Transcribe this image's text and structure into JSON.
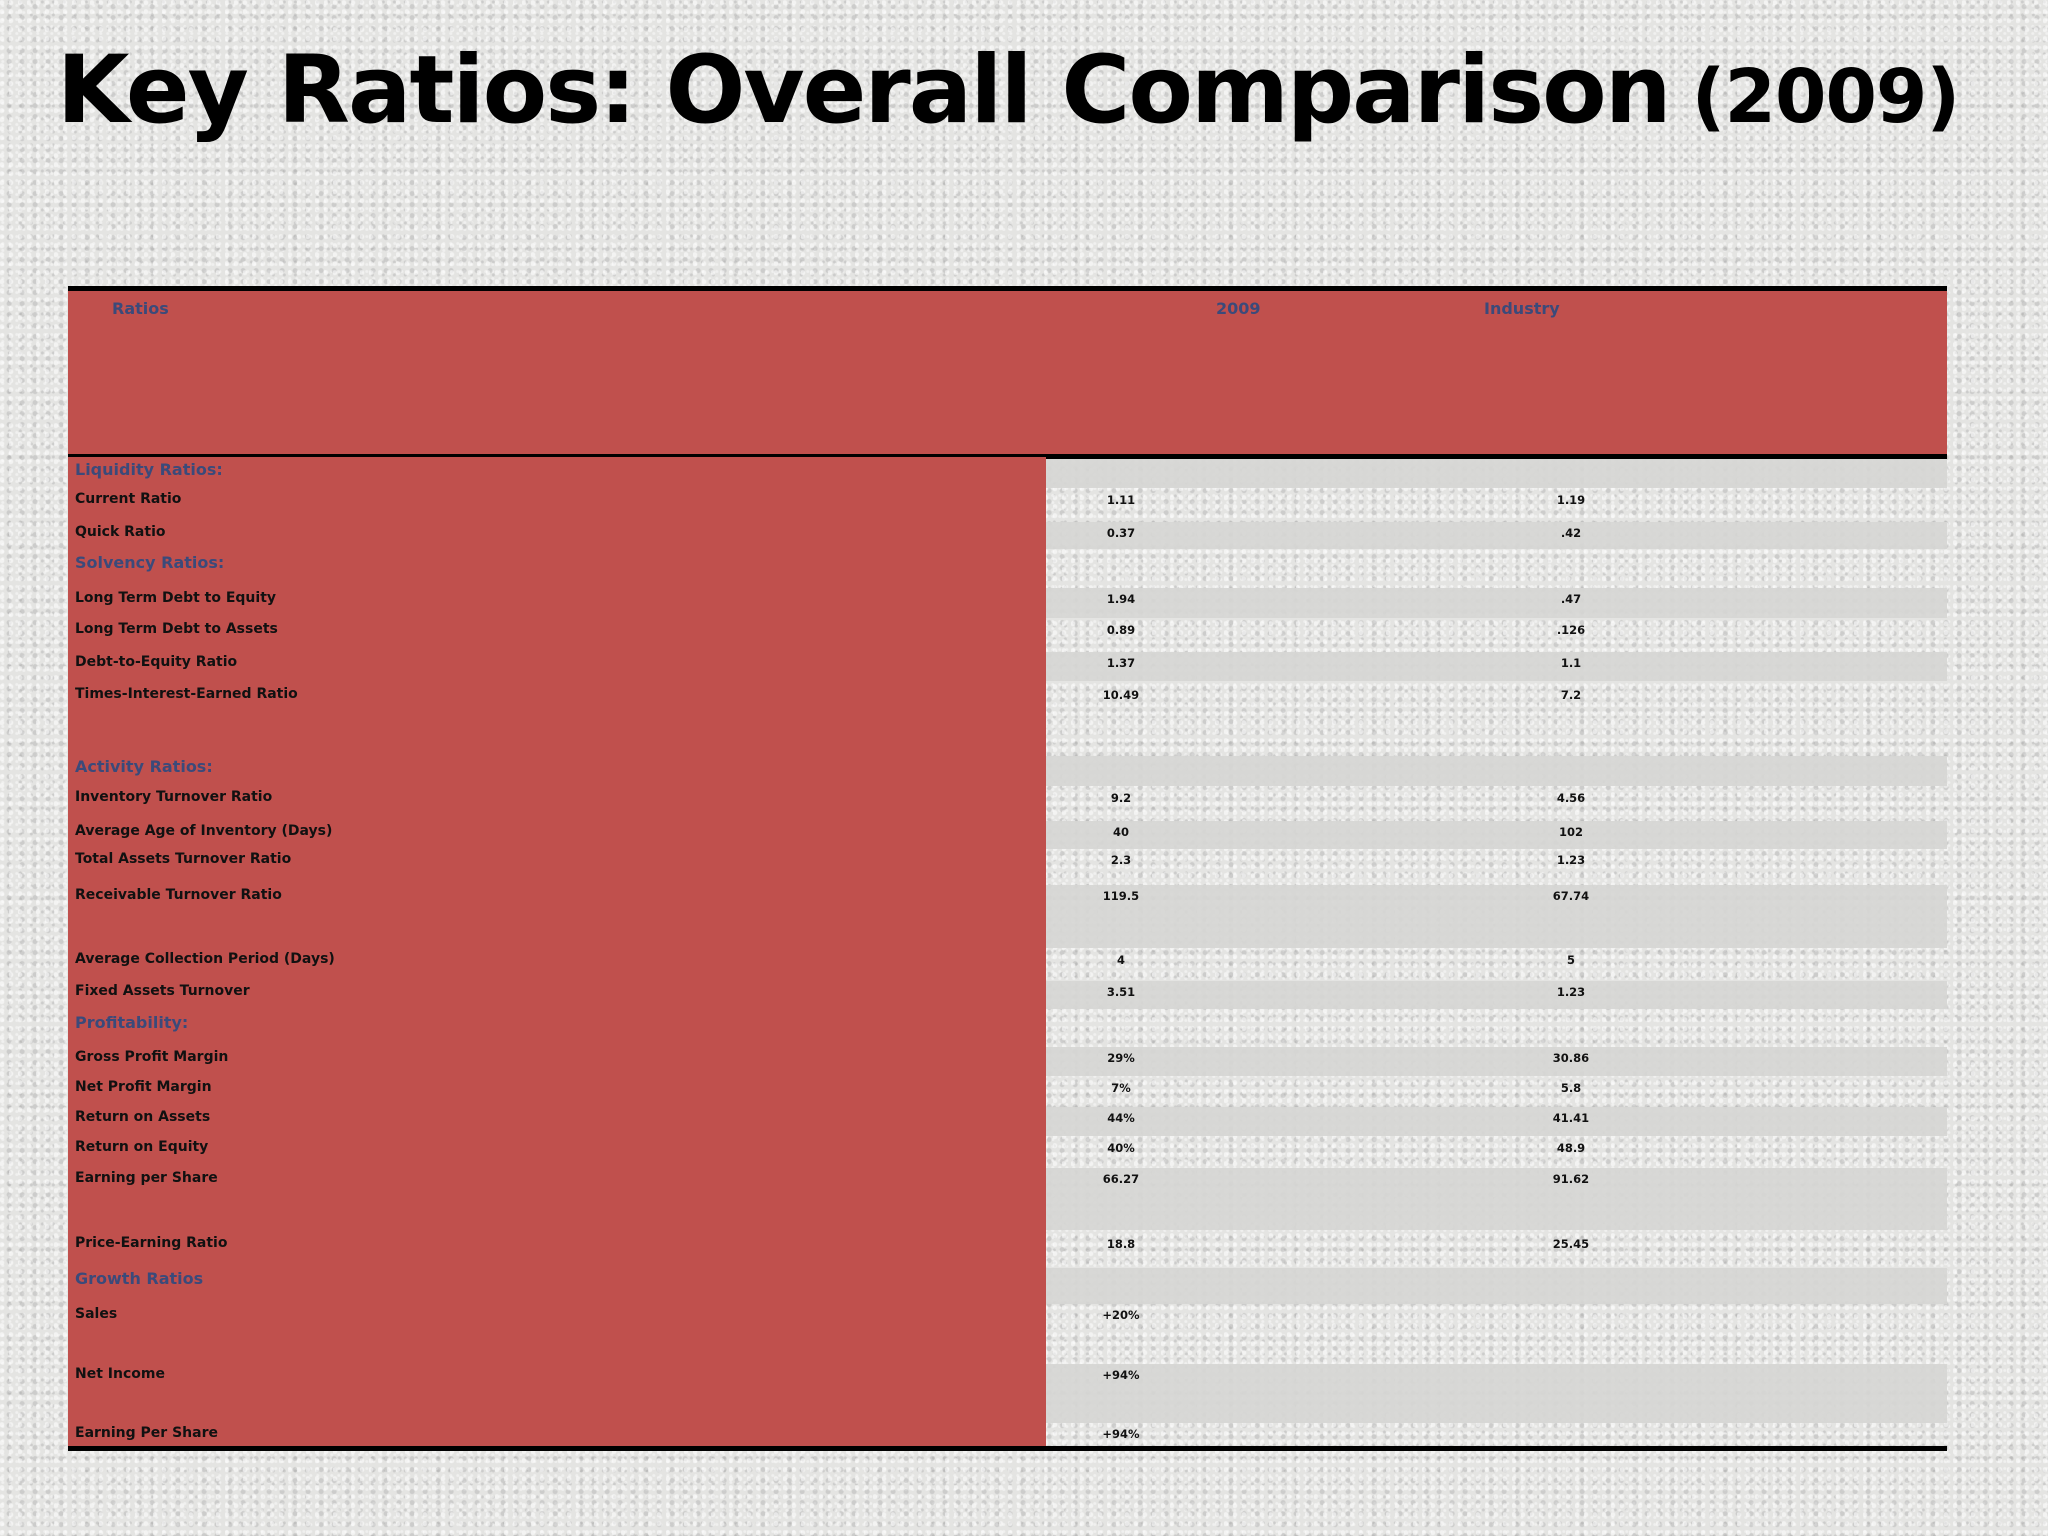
{
  "title": {
    "main": "Key Ratios: Overall Comparison",
    "year": "(2009)"
  },
  "header": {
    "col_ratio": "Ratios",
    "col_year": "2009",
    "col_industry": "Industry"
  },
  "rows": [
    {
      "type": "section",
      "label": "Liquidity Ratios:",
      "v1": "",
      "v2": ""
    },
    {
      "type": "item",
      "label": "Current Ratio",
      "v1": "1.11",
      "v2": "1.19"
    },
    {
      "type": "item",
      "label": "Quick Ratio",
      "v1": "0.37",
      "v2": ".42"
    },
    {
      "type": "section",
      "label": "Solvency Ratios:",
      "v1": "",
      "v2": ""
    },
    {
      "type": "item",
      "label": "Long Term Debt to Equity",
      "v1": "1.94",
      "v2": ".47"
    },
    {
      "type": "item",
      "label": "Long Term Debt to Assets",
      "v1": "0.89",
      "v2": ".126"
    },
    {
      "type": "item",
      "label": "Debt-to-Equity Ratio",
      "v1": "1.37",
      "v2": "1.1"
    },
    {
      "type": "item",
      "label": "Times-Interest-Earned Ratio",
      "v1": "10.49",
      "v2": "7.2"
    },
    {
      "type": "section",
      "label": "Activity Ratios:",
      "v1": "",
      "v2": ""
    },
    {
      "type": "item",
      "label": "Inventory Turnover Ratio",
      "v1": "9.2",
      "v2": "4.56"
    },
    {
      "type": "item",
      "label": "Average Age of Inventory (Days)",
      "v1": "40",
      "v2": "102"
    },
    {
      "type": "item",
      "label": "Total Assets Turnover Ratio",
      "v1": "2.3",
      "v2": "1.23"
    },
    {
      "type": "item",
      "label": "Receivable Turnover Ratio",
      "v1": "119.5",
      "v2": "67.74"
    },
    {
      "type": "item",
      "label": "Average Collection Period (Days)",
      "v1": "4",
      "v2": "5"
    },
    {
      "type": "item",
      "label": "Fixed Assets Turnover",
      "v1": "3.51",
      "v2": "1.23"
    },
    {
      "type": "section",
      "label": "Profitability:",
      "v1": "",
      "v2": ""
    },
    {
      "type": "item",
      "label": "Gross Profit Margin",
      "v1": "29%",
      "v2": "30.86"
    },
    {
      "type": "item",
      "label": "Net Profit Margin",
      "v1": "7%",
      "v2": "5.8"
    },
    {
      "type": "item",
      "label": "Return on Assets",
      "v1": "44%",
      "v2": "41.41"
    },
    {
      "type": "item",
      "label": "Return on Equity",
      "v1": "40%",
      "v2": "48.9"
    },
    {
      "type": "item",
      "label": "Earning per Share",
      "v1": "66.27",
      "v2": "91.62"
    },
    {
      "type": "item",
      "label": "Price-Earning Ratio",
      "v1": "18.8",
      "v2": "25.45"
    },
    {
      "type": "section",
      "label": "Growth Ratios",
      "v1": "",
      "v2": ""
    },
    {
      "type": "item",
      "label": "Sales",
      "v1": "+20%",
      "v2": ""
    },
    {
      "type": "item",
      "label": "Net Income",
      "v1": "+94%",
      "v2": ""
    },
    {
      "type": "item",
      "label": "Earning Per Share",
      "v1": "+94%",
      "v2": ""
    }
  ]
}
